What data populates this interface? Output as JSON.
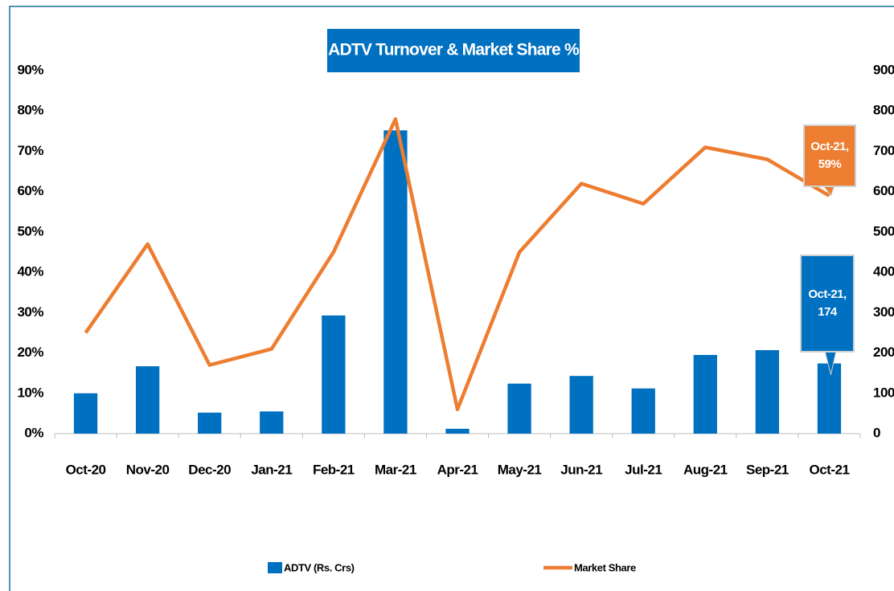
{
  "chart_data": {
    "type": "bar-line",
    "title": "ADTV Turnover & Market Share %",
    "categories": [
      "Oct-20",
      "Nov-20",
      "Dec-20",
      "Jan-21",
      "Feb-21",
      "Mar-21",
      "Apr-21",
      "May-21",
      "Jun-21",
      "Jul-21",
      "Aug-21",
      "Sep-21",
      "Oct-21"
    ],
    "series": [
      {
        "name": "ADTV (Rs. Crs)",
        "type": "bar",
        "axis": "y2",
        "color": "#0070c0",
        "values": [
          100,
          167,
          52,
          55,
          293,
          752,
          12,
          124,
          143,
          112,
          195,
          207,
          174
        ]
      },
      {
        "name": "Market Share",
        "type": "line",
        "axis": "y",
        "color": "#ed7d31",
        "values": [
          25,
          47,
          17,
          21,
          45,
          78,
          6,
          45,
          62,
          57,
          71,
          68,
          59
        ]
      }
    ],
    "annotations": [
      {
        "lines": [
          "Oct-21,",
          "59%"
        ],
        "color": "#ed7d31"
      },
      {
        "lines": [
          "Oct-21,",
          "174"
        ],
        "color": "#0070c0"
      }
    ],
    "ylim": [
      0,
      90
    ],
    "yticks": [
      {
        "value": 0,
        "label": "0%"
      },
      {
        "value": 10,
        "label": "10%"
      },
      {
        "value": 20,
        "label": "20%"
      },
      {
        "value": 30,
        "label": "30%"
      },
      {
        "value": 40,
        "label": "40%"
      },
      {
        "value": 50,
        "label": "50%"
      },
      {
        "value": 60,
        "label": "60%"
      },
      {
        "value": 70,
        "label": "70%"
      },
      {
        "value": 80,
        "label": "80%"
      },
      {
        "value": 90,
        "label": "90%"
      }
    ],
    "y2lim": [
      0,
      900
    ],
    "y2ticks": [
      0,
      100,
      200,
      300,
      400,
      500,
      600,
      700,
      800,
      900
    ],
    "grid": false,
    "legend": "bottom"
  }
}
